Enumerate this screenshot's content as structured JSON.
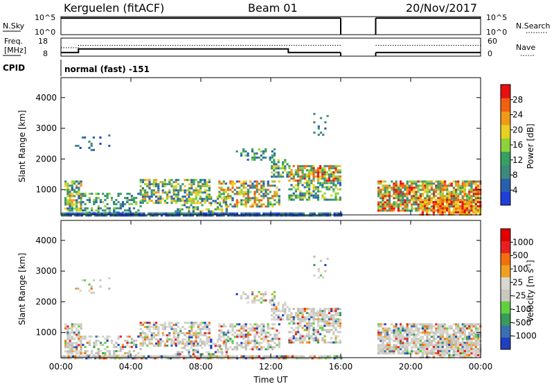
{
  "header": {
    "station": "Kerguelen (fitACF)",
    "beam": "Beam 01",
    "date": "20/Nov/2017"
  },
  "colors": {
    "power": [
      "#1f3fd8",
      "#2a5fb0",
      "#3d8a7a",
      "#35a060",
      "#8fd13a",
      "#e8d020",
      "#f09a1a",
      "#f06010",
      "#e81010"
    ],
    "velocity": [
      "#2040c0",
      "#3a70b0",
      "#3a9a5a",
      "#60d040",
      "#c8c8c0",
      "#d8d8d0",
      "#f0a020",
      "#f07010",
      "#e82020",
      "#e00000"
    ]
  },
  "top_panels": {
    "nsky": {
      "label": "N.Sky",
      "tick_top": "10^5",
      "tick_bottom": "10^0",
      "right_label": "N.Search",
      "right_tick_top": "10^5",
      "right_tick_bottom": "10^0"
    },
    "freq": {
      "label_line1": "Freq.",
      "label_line2": "[MHz]",
      "tick_top": "18",
      "tick_bottom": "8",
      "right_label": "Nave",
      "right_tick_top": "60",
      "right_tick_bottom": "0"
    },
    "cpid": {
      "label": "CPID",
      "program": "normal (fast) -151"
    }
  },
  "chart_data": [
    {
      "type": "line",
      "name": "nsky-panel",
      "ylim": [
        0,
        5
      ],
      "segments": [
        {
          "x": [
            0.0,
            16.0
          ],
          "y": [
            4.6,
            4.6
          ]
        },
        {
          "x": [
            18.0,
            24.0
          ],
          "y": [
            4.6,
            4.6
          ]
        }
      ]
    },
    {
      "type": "line",
      "name": "freq-panel",
      "ylim": [
        8,
        18
      ],
      "freq_segments": [
        {
          "x": [
            0.0,
            1.0,
            1.0,
            13.0,
            13.0,
            16.0
          ],
          "y": [
            10.0,
            10.0,
            12.0,
            12.0,
            10.0,
            10.0
          ]
        },
        {
          "x": [
            18.0,
            24.0
          ],
          "y": [
            10.0,
            10.0
          ]
        }
      ],
      "nave_segments": [
        {
          "x": [
            0.0,
            1.0,
            1.0,
            16.0
          ],
          "y": [
            28,
            28,
            36,
            36
          ]
        },
        {
          "x": [
            18.0,
            24.0
          ],
          "y": [
            36,
            36
          ]
        }
      ]
    },
    {
      "type": "heatmap",
      "name": "power",
      "xlabel": "",
      "ylabel": "Slant Range [km]",
      "x_ticks": [
        "",
        "",
        "",
        "",
        "",
        "",
        ""
      ],
      "y_ticks": [
        "1000",
        "2000",
        "3000",
        "4000"
      ],
      "y_values": [
        1000,
        2000,
        3000,
        4000
      ],
      "ylim": [
        180,
        4650
      ],
      "xlim": [
        0,
        24
      ],
      "colorbar_label": "Power [dB]",
      "colorbar_ticks": [
        "4",
        "8",
        "12",
        "16",
        "20",
        "24",
        "28"
      ],
      "colorbar_values": [
        4,
        8,
        12,
        16,
        20,
        24,
        28
      ],
      "colorbar_range": [
        0,
        32
      ]
    },
    {
      "type": "heatmap",
      "name": "velocity",
      "xlabel": "Time UT",
      "ylabel": "Slant Range [km]",
      "x_ticks": [
        "00:00",
        "04:00",
        "08:00",
        "12:00",
        "16:00",
        "20:00",
        "00:00"
      ],
      "x_values": [
        0,
        4,
        8,
        12,
        16,
        20,
        24
      ],
      "y_ticks": [
        "1000",
        "2000",
        "3000",
        "4000"
      ],
      "y_values": [
        1000,
        2000,
        3000,
        4000
      ],
      "ylim": [
        180,
        4650
      ],
      "xlim": [
        0,
        24
      ],
      "colorbar_label": "Velocity [m s",
      "colorbar_label_sup": "-1",
      "colorbar_label_end": "]",
      "colorbar_ticks": [
        "1000",
        "500",
        "100",
        "25",
        "-25",
        "-100",
        "-500",
        "-1000"
      ]
    }
  ]
}
